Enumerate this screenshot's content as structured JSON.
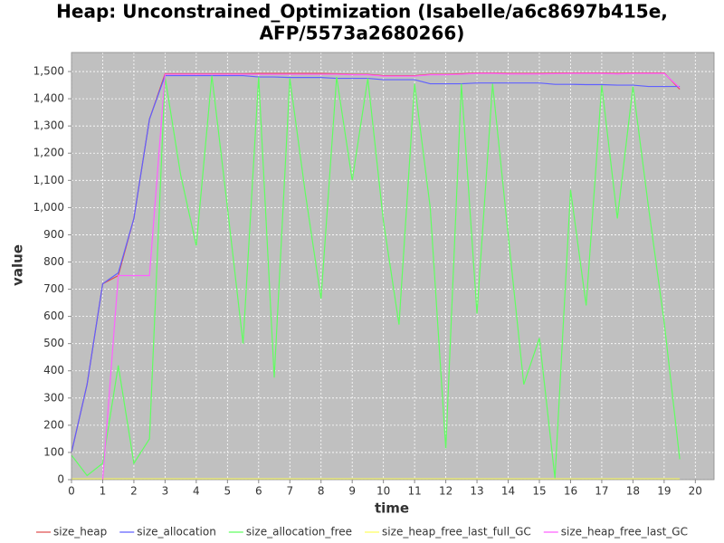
{
  "chart_data": {
    "type": "line",
    "title": [
      "Heap: Unconstrained_Optimization (Isabelle/a6c8697b415e,",
      "AFP/5573a2680266)"
    ],
    "x_label": "time",
    "y_label": "value",
    "x": [
      0,
      0.5,
      1,
      1.5,
      2,
      2.5,
      3,
      3.5,
      4,
      4.5,
      5,
      5.5,
      6,
      6.5,
      7,
      7.5,
      8,
      8.5,
      9,
      9.5,
      10,
      10.5,
      11,
      11.5,
      12,
      12.5,
      13,
      13.5,
      14,
      14.5,
      15,
      15.5,
      16,
      16.5,
      17,
      17.5,
      18,
      18.5,
      19,
      19.5
    ],
    "series": [
      {
        "name": "size_heap",
        "color": "#e05050",
        "values": [
          100,
          350,
          720,
          750,
          960,
          1325,
          1492,
          1492,
          1492,
          1492,
          1492,
          1492,
          1493,
          1493,
          1493,
          1493,
          1493,
          1492,
          1490,
          1490,
          1485,
          1485,
          1485,
          1490,
          1490,
          1492,
          1495,
          1495,
          1493,
          1493,
          1493,
          1494,
          1495,
          1495,
          1495,
          1493,
          1495,
          1495,
          1495,
          1435
        ]
      },
      {
        "name": "size_allocation",
        "color": "#6060ff",
        "values": [
          100,
          350,
          720,
          760,
          960,
          1325,
          1485,
          1485,
          1485,
          1485,
          1485,
          1485,
          1480,
          1480,
          1478,
          1478,
          1478,
          1475,
          1475,
          1475,
          1470,
          1470,
          1470,
          1455,
          1455,
          1455,
          1458,
          1458,
          1458,
          1458,
          1458,
          1453,
          1453,
          1452,
          1452,
          1450,
          1450,
          1445,
          1445,
          1445
        ]
      },
      {
        "name": "size_allocation_free",
        "color": "#60ff60",
        "values": [
          90,
          15,
          60,
          420,
          60,
          150,
          1480,
          1120,
          860,
          1485,
          1000,
          500,
          1480,
          375,
          1475,
          1050,
          665,
          1480,
          1100,
          1475,
          950,
          570,
          1455,
          1000,
          115,
          1455,
          610,
          1455,
          900,
          350,
          520,
          5,
          1065,
          640,
          1450,
          960,
          1445,
          1000,
          580,
          75
        ]
      },
      {
        "name": "size_heap_free_last_full_GC",
        "color": "#ffff60",
        "values": [
          3,
          3,
          3,
          3,
          3,
          3,
          3,
          3,
          3,
          3,
          3,
          3,
          3,
          3,
          3,
          3,
          3,
          3,
          3,
          3,
          3,
          3,
          3,
          3,
          3,
          3,
          3,
          3,
          3,
          3,
          3,
          3,
          3,
          3,
          3,
          3,
          3,
          3,
          3,
          3
        ]
      },
      {
        "name": "size_heap_free_last_GC",
        "color": "#ff60ff",
        "values": [
          null,
          null,
          0,
          750,
          750,
          750,
          1490,
          1490,
          1490,
          1490,
          1490,
          1490,
          1490,
          1490,
          1490,
          1490,
          1490,
          1490,
          1488,
          1488,
          1483,
          1483,
          1483,
          1488,
          1488,
          1490,
          1493,
          1493,
          1491,
          1491,
          1491,
          1492,
          1493,
          1493,
          1493,
          1491,
          1493,
          1493,
          1493,
          1440
        ]
      }
    ],
    "xlim": [
      0,
      20.6
    ],
    "ylim": [
      0,
      1570
    ],
    "xticks": [
      0,
      1,
      2,
      3,
      4,
      5,
      6,
      7,
      8,
      9,
      10,
      11,
      12,
      13,
      14,
      15,
      16,
      17,
      18,
      19,
      20
    ],
    "yticks": [
      0,
      100,
      200,
      300,
      400,
      500,
      600,
      700,
      800,
      900,
      {
        "value": 1000,
        "label": "1,000"
      },
      {
        "value": 1100,
        "label": "1,100"
      },
      {
        "value": 1200,
        "label": "1,200"
      },
      {
        "value": 1300,
        "label": "1,300"
      },
      {
        "value": 1400,
        "label": "1,400"
      },
      {
        "value": 1500,
        "label": "1,500"
      }
    ],
    "grid": true,
    "legend": "bottom"
  }
}
